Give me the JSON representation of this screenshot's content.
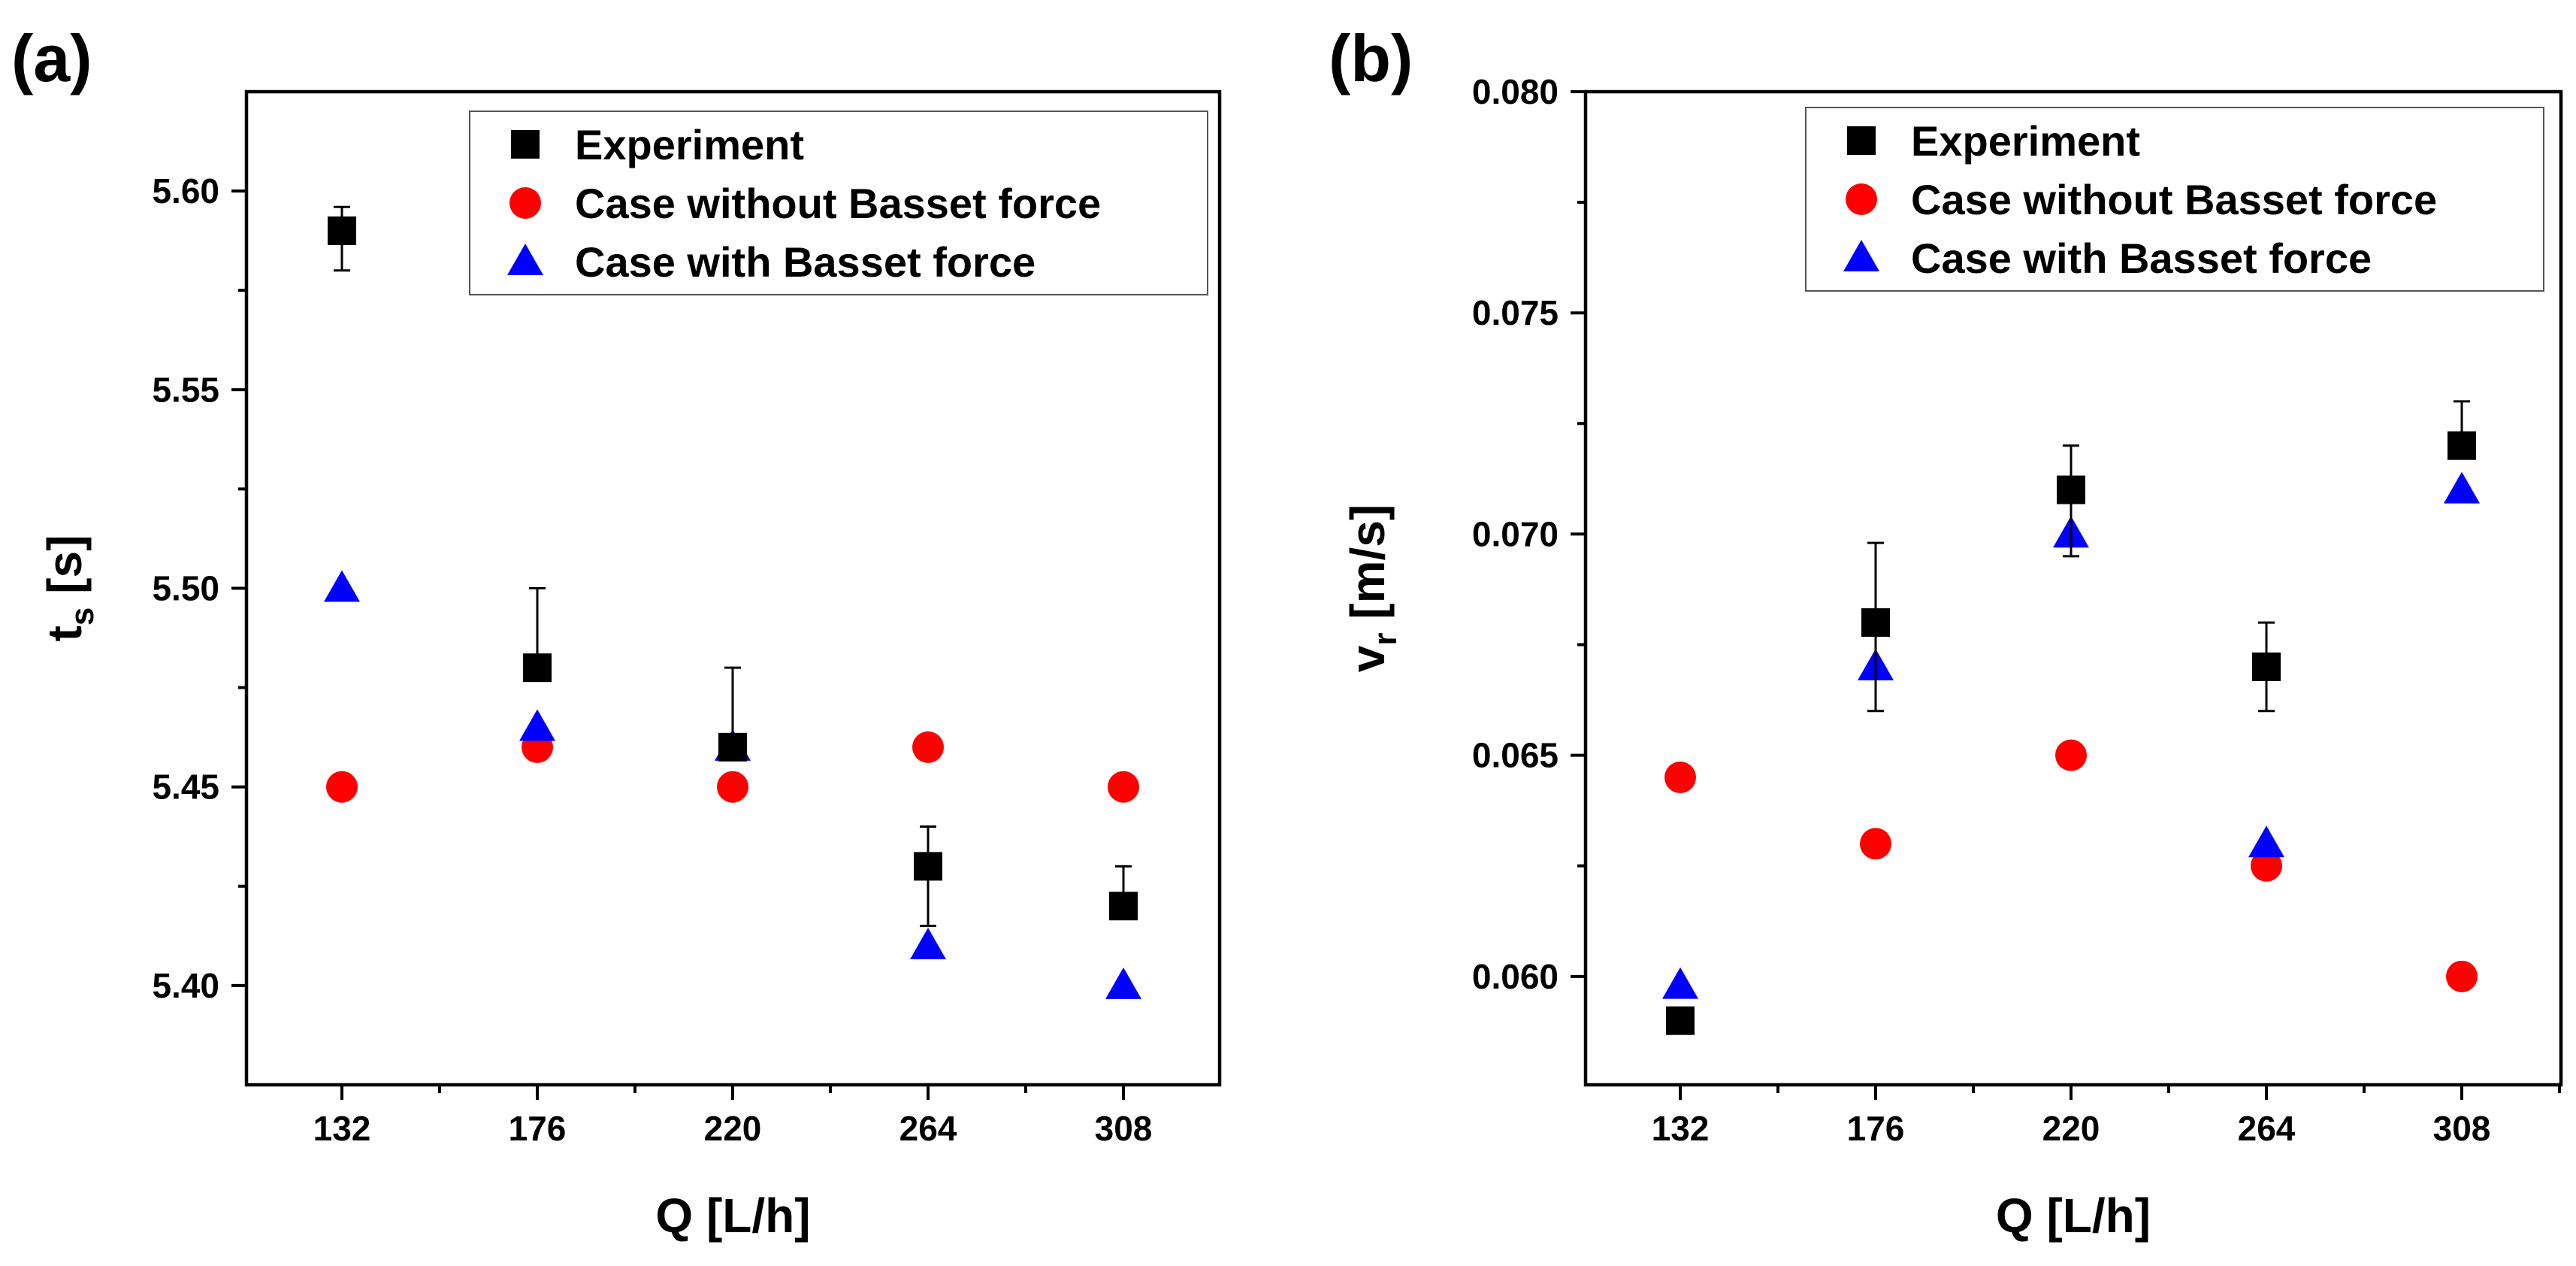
{
  "chart_data": [
    {
      "type": "scatter",
      "panel_label": "(a)",
      "xlabel": "Q [L/h]",
      "ylabel": "t",
      "ylabel_sub": "s",
      "ylabel_unit": " [s]",
      "categories": [
        "132",
        "176",
        "220",
        "264",
        "308"
      ],
      "ylim": [
        5.375,
        5.625
      ],
      "y_ticks": [
        "5.40",
        "5.45",
        "5.50",
        "5.55",
        "5.60"
      ],
      "grid": false,
      "legend_position": "top-right",
      "series": [
        {
          "name": "Experiment",
          "marker": "square",
          "color": "#000000",
          "values": [
            5.59,
            5.48,
            5.46,
            5.43,
            5.42
          ],
          "err_low": [
            5.58,
            null,
            null,
            5.415,
            null
          ],
          "err_high": [
            5.596,
            5.5,
            5.48,
            5.44,
            5.43
          ]
        },
        {
          "name": "Case without Basset force",
          "marker": "circle",
          "color": "#ff0000",
          "values": [
            5.45,
            5.46,
            5.45,
            5.46,
            5.45
          ]
        },
        {
          "name": "Case with Basset force",
          "marker": "triangle",
          "color": "#0000ff",
          "values": [
            5.5,
            5.465,
            5.46,
            5.41,
            5.4
          ]
        }
      ]
    },
    {
      "type": "scatter",
      "panel_label": "(b)",
      "xlabel": "Q [L/h]",
      "ylabel": "v",
      "ylabel_sub": "r",
      "ylabel_unit": " [m/s]",
      "categories": [
        "132",
        "176",
        "220",
        "264",
        "308"
      ],
      "ylim": [
        0.05755,
        0.08
      ],
      "y_ticks": [
        "0.060",
        "0.065",
        "0.070",
        "0.075",
        "0.080"
      ],
      "grid": false,
      "legend_position": "top-right",
      "series": [
        {
          "name": "Experiment",
          "marker": "square",
          "color": "#000000",
          "values": [
            0.059,
            0.068,
            0.071,
            0.067,
            0.072
          ],
          "err_low": [
            null,
            0.066,
            0.0695,
            0.066,
            null
          ],
          "err_high": [
            null,
            0.0698,
            0.072,
            0.068,
            0.073
          ]
        },
        {
          "name": "Case without Basset force",
          "marker": "circle",
          "color": "#ff0000",
          "values": [
            0.0645,
            0.063,
            0.065,
            0.0625,
            0.06
          ]
        },
        {
          "name": "Case with Basset force",
          "marker": "triangle",
          "color": "#0000ff",
          "values": [
            0.0598,
            0.067,
            0.07,
            0.063,
            0.071
          ]
        }
      ]
    }
  ]
}
